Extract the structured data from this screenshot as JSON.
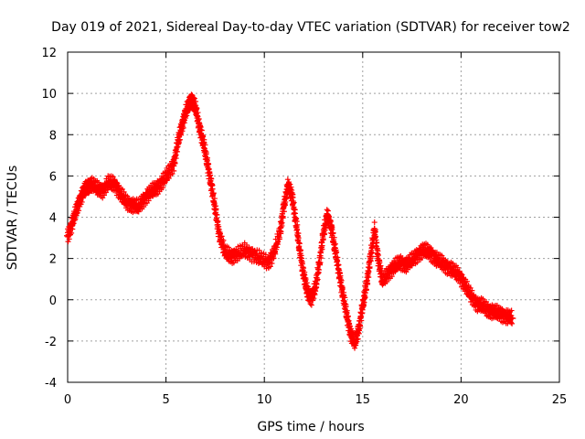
{
  "chart_data": {
    "type": "scatter",
    "title": "Day 019 of 2021, Sidereal Day-to-day VTEC variation (SDTVAR) for receiver tow2",
    "xlabel": "GPS time / hours",
    "ylabel": "SDTVAR / TECUs",
    "xlim": [
      0,
      25
    ],
    "ylim": [
      -4,
      12
    ],
    "xticks": [
      0,
      5,
      10,
      15,
      20,
      25
    ],
    "yticks": [
      -4,
      -2,
      0,
      2,
      4,
      6,
      8,
      10,
      12
    ],
    "grid": true,
    "marker": "+",
    "series": [
      {
        "name": "SDTVAR",
        "color": "#ff0000",
        "x": [
          0.0,
          0.2,
          0.4,
          0.6,
          0.8,
          1.0,
          1.2,
          1.5,
          1.8,
          2.1,
          2.4,
          2.7,
          3.0,
          3.3,
          3.6,
          3.9,
          4.2,
          4.5,
          4.8,
          5.1,
          5.4,
          5.6,
          5.8,
          6.0,
          6.2,
          6.3,
          6.5,
          6.7,
          6.9,
          7.1,
          7.3,
          7.5,
          7.7,
          8.0,
          8.3,
          8.6,
          9.0,
          9.4,
          9.8,
          10.2,
          10.5,
          10.8,
          11.0,
          11.2,
          11.4,
          11.6,
          11.8,
          12.0,
          12.2,
          12.4,
          12.6,
          12.8,
          13.0,
          13.2,
          13.4,
          13.6,
          13.8,
          14.0,
          14.2,
          14.4,
          14.6,
          14.8,
          15.0,
          15.2,
          15.4,
          15.6,
          15.8,
          16.0,
          16.3,
          16.6,
          16.9,
          17.2,
          17.5,
          17.8,
          18.1,
          18.4,
          18.7,
          19.0,
          19.3,
          19.6,
          19.9,
          20.2,
          20.5,
          20.8,
          21.1,
          21.4,
          21.7,
          22.0,
          22.3,
          22.6
        ],
        "y": [
          3.1,
          3.6,
          4.2,
          4.8,
          5.2,
          5.5,
          5.6,
          5.4,
          5.3,
          5.7,
          5.6,
          5.1,
          4.7,
          4.6,
          4.5,
          4.9,
          5.2,
          5.4,
          5.7,
          6.1,
          6.6,
          7.6,
          8.4,
          9.1,
          9.5,
          9.7,
          9.3,
          8.4,
          7.6,
          6.6,
          5.6,
          4.4,
          3.2,
          2.3,
          2.1,
          2.2,
          2.4,
          2.2,
          2.0,
          1.8,
          2.3,
          3.3,
          4.6,
          5.5,
          5.1,
          3.8,
          2.4,
          1.2,
          0.3,
          0.1,
          0.6,
          1.8,
          3.2,
          4.1,
          3.5,
          2.4,
          1.3,
          0.2,
          -0.8,
          -1.7,
          -2.1,
          -1.4,
          -0.3,
          0.8,
          2.1,
          3.4,
          1.9,
          0.9,
          1.3,
          1.6,
          1.8,
          1.7,
          1.9,
          2.2,
          2.4,
          2.3,
          2.0,
          1.8,
          1.6,
          1.4,
          1.2,
          0.7,
          0.2,
          -0.2,
          -0.3,
          -0.5,
          -0.6,
          -0.7,
          -0.8,
          -0.9
        ]
      }
    ]
  }
}
